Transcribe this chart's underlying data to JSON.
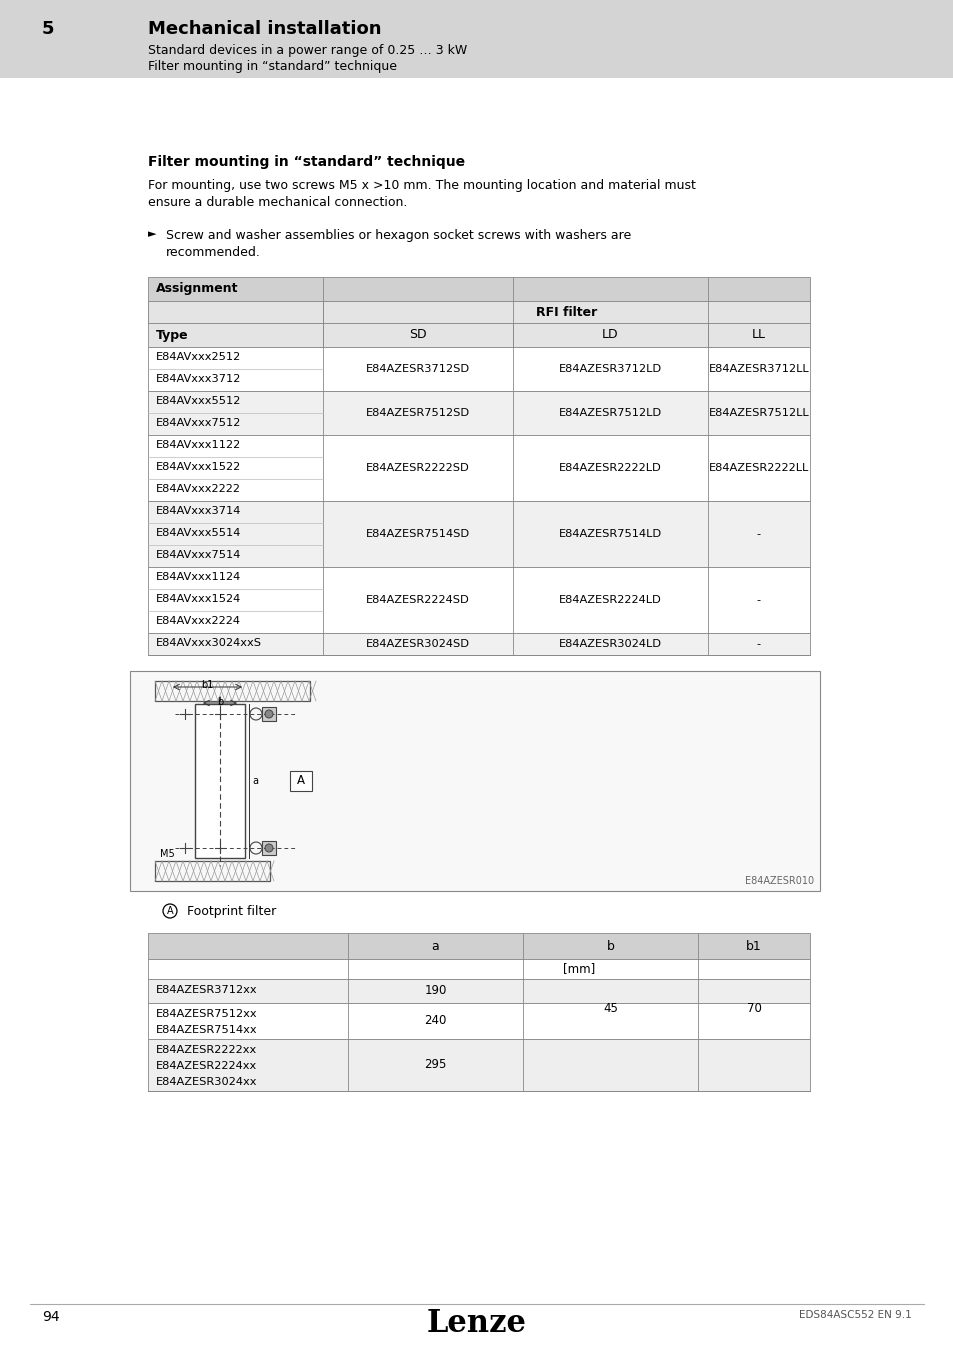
{
  "page_bg": "#ffffff",
  "header_bg": "#d4d4d4",
  "header_num": "5",
  "header_title": "Mechanical installation",
  "header_sub1": "Standard devices in a power range of 0.25 … 3 kW",
  "header_sub2": "Filter mounting in “standard” technique",
  "section_title": "Filter mounting in “standard” technique",
  "para1_line1": "For mounting, use two screws M5 x >10 mm. The mounting location and material must",
  "para1_line2": "ensure a durable mechanical connection.",
  "bullet1_line1": "Screw and washer assemblies or hexagon socket screws with washers are",
  "bullet1_line2": "recommended.",
  "table1_title": "Assignment",
  "table1_rfi": "RFI filter",
  "table1_cols": [
    "Type",
    "SD",
    "LD",
    "LL"
  ],
  "table1_rows": [
    [
      "E84AVxxx2512",
      "E84AVxxx3712",
      "E84AZESR3712SD",
      "E84AZESR3712LD",
      "E84AZESR3712LL"
    ],
    [
      "E84AVxxx5512",
      "E84AVxxx7512",
      "E84AZESR7512SD",
      "E84AZESR7512LD",
      "E84AZESR7512LL"
    ],
    [
      "E84AVxxx1122",
      "E84AVxxx1522",
      "E84AVxxx2222",
      "E84AZESR2222SD",
      "E84AZESR2222LD",
      "E84AZESR2222LL"
    ],
    [
      "E84AVxxx3714",
      "E84AVxxx5514",
      "E84AVxxx7514",
      "E84AZESR7514SD",
      "E84AZESR7514LD",
      "-"
    ],
    [
      "E84AVxxx1124",
      "E84AVxxx1524",
      "E84AVxxx2224",
      "E84AZESR2224SD",
      "E84AZESR2224LD",
      "-"
    ],
    [
      "E84AVxxx3024xxS",
      "",
      "E84AZESR3024SD",
      "E84AZESR3024LD",
      "-"
    ]
  ],
  "diagram_ref": "E84AZESR010",
  "circle_label": "A",
  "footprint_label": "Footprint filter",
  "table2_cols": [
    "",
    "a",
    "b",
    "b1"
  ],
  "table2_rows": [
    [
      "E84AZESR3712xx",
      "190",
      "",
      ""
    ],
    [
      "E84AZESR7512xx",
      "E84AZESR7514xx",
      "240",
      "45",
      "70"
    ],
    [
      "E84AZESR2222xx",
      "E84AZESR2224xx",
      "E84AZESR3024xx",
      "295",
      "",
      ""
    ]
  ],
  "footer_page": "94",
  "footer_brand": "Lenze",
  "footer_doc": "EDS84ASC552 EN 9.1"
}
